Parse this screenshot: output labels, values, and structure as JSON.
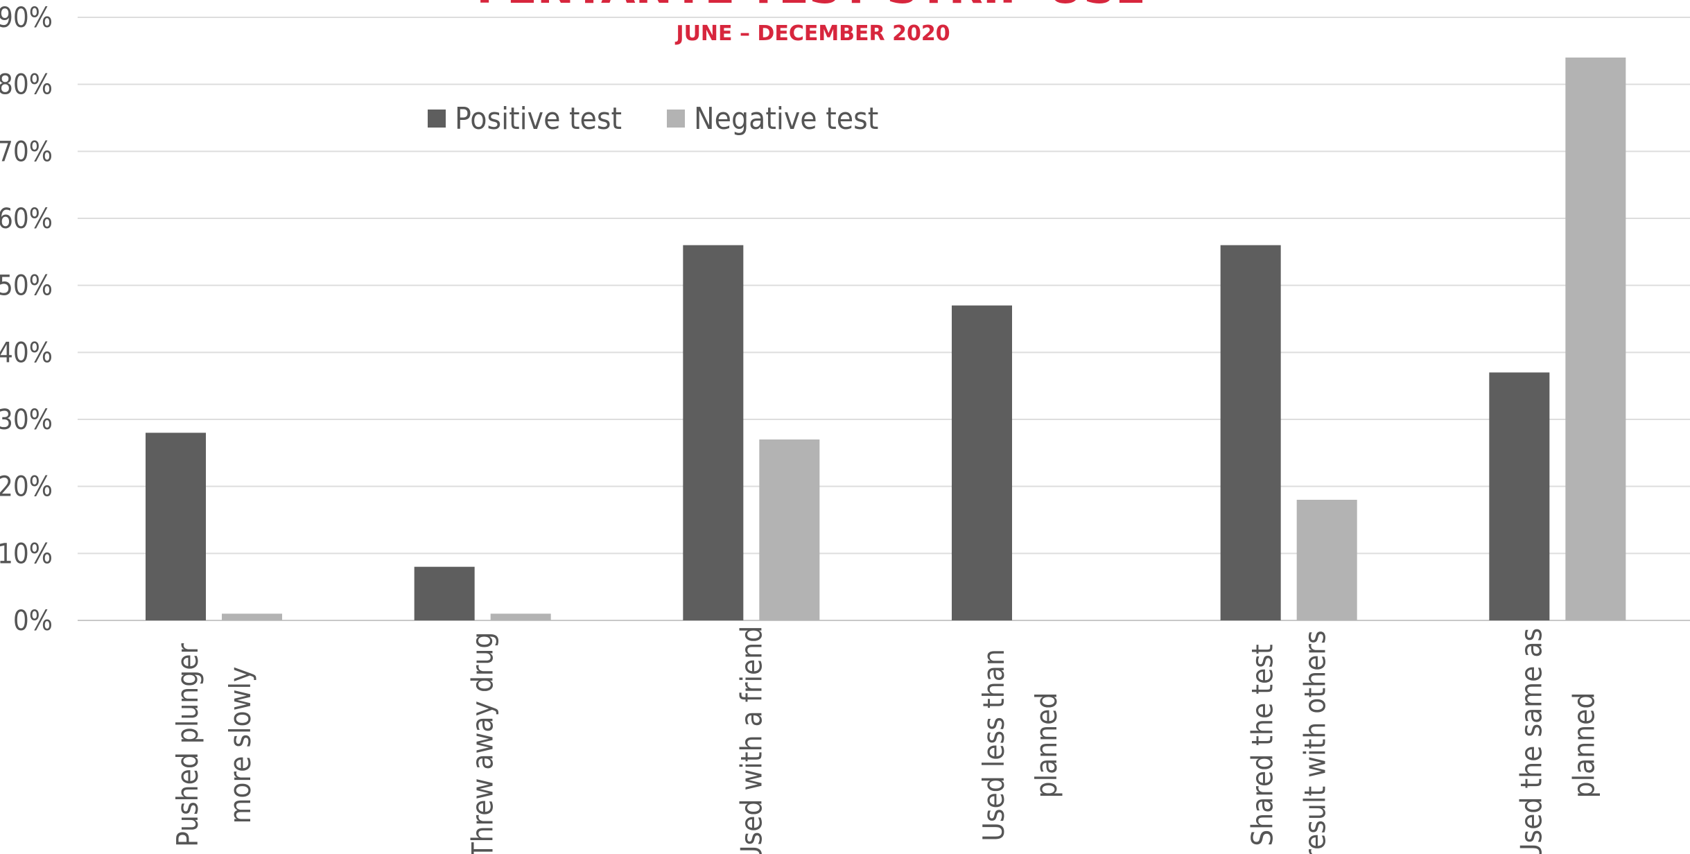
{
  "chart_data": {
    "type": "bar",
    "title": "FENTANYL TEST STRIP USE",
    "subtitle": "JUNE – DECEMBER 2020",
    "categories": [
      [
        "Pushed plunger",
        "more slowly"
      ],
      [
        "Threw away drug"
      ],
      [
        "Used with a friend"
      ],
      [
        "Used less than",
        "planned"
      ],
      [
        "Shared the test",
        "result with others"
      ],
      [
        "Used the same as",
        "planned"
      ]
    ],
    "series": [
      {
        "name": "Positive test",
        "values": [
          28,
          8,
          56,
          47,
          56,
          37
        ],
        "color": "#5e5e5e"
      },
      {
        "name": "Negative test",
        "values": [
          1,
          1,
          27,
          0,
          18,
          84
        ],
        "color": "#b3b3b3"
      }
    ],
    "yticks": [
      "0%",
      "10%",
      "20%",
      "30%",
      "40%",
      "50%",
      "60%",
      "70%",
      "80%",
      "90%"
    ],
    "ylim": [
      0,
      90
    ],
    "grid": true,
    "legend": "top-left"
  }
}
